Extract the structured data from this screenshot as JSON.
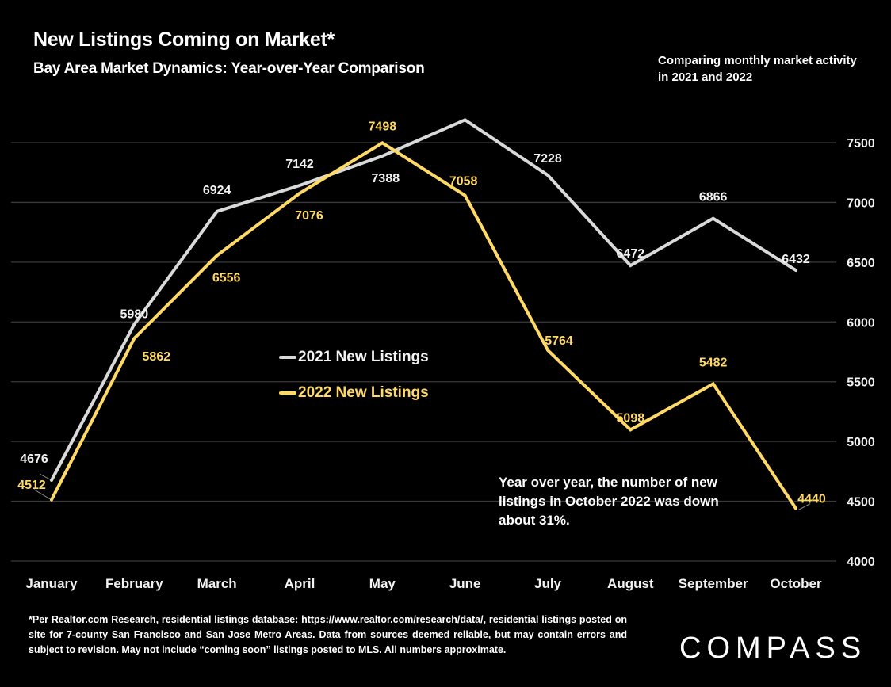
{
  "header": {
    "title": "New Listings Coming on Market*",
    "subtitle": "Bay Area Market Dynamics: Year-over-Year Comparison",
    "side_note": "Comparing monthly market activity in 2021 and 2022"
  },
  "annotation": "Year over year, the number of new listings in October 2022 was down about 31%.",
  "footnote": "*Per Realtor.com Research, residential listings database: https://www.realtor.com/research/data/, residential listings posted on site for 7-county San Francisco and San Jose Metro Areas. Data from sources deemed reliable, but may contain errors and subject to revision. May not include “coming soon” listings posted to MLS. All numbers approximate.",
  "logo": "COMPASS",
  "colors": {
    "background": "#000000",
    "series_2021": "#D9D9D9",
    "series_2022": "#FFD966",
    "gridline": "#3a3a3a",
    "text": "#FFFFFF"
  },
  "chart_data": {
    "type": "line",
    "title": "New Listings Coming on Market*",
    "subtitle": "Bay Area Market Dynamics: Year-over-Year Comparison",
    "xlabel": "",
    "ylabel": "",
    "categories": [
      "January",
      "February",
      "March",
      "April",
      "May",
      "June",
      "July",
      "August",
      "September",
      "October"
    ],
    "ylim": [
      4000,
      7500
    ],
    "yticks": [
      4000,
      4500,
      5000,
      5500,
      6000,
      6500,
      7000,
      7500
    ],
    "y_axis_side": "right",
    "grid": true,
    "legend_placement": "center",
    "series": [
      {
        "name": "2021 New Listings",
        "values": [
          4676,
          5980,
          6924,
          7142,
          7388,
          7690,
          7228,
          6472,
          6866,
          6432
        ],
        "labels": [
          "4676",
          "5980",
          "6924",
          "7142",
          "7388",
          "",
          "7228",
          "6472",
          "6866",
          "6432"
        ]
      },
      {
        "name": "2022 New Listings",
        "values": [
          4512,
          5862,
          6556,
          7076,
          7498,
          7058,
          5764,
          5098,
          5482,
          4440
        ],
        "labels": [
          "4512",
          "5862",
          "6556",
          "7076",
          "7498",
          "7058",
          "5764",
          "5098",
          "5482",
          "4440"
        ]
      }
    ]
  }
}
